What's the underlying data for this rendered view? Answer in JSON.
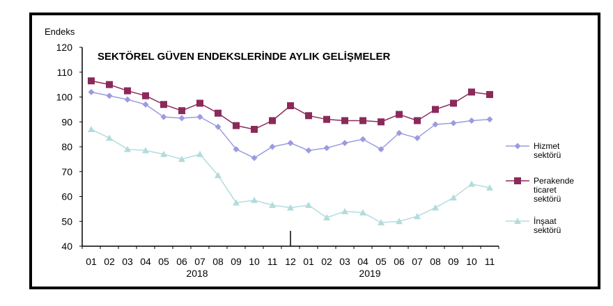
{
  "chart_data": {
    "type": "line",
    "title": "SEKTÖREL GÜVEN ENDEKSLERİNDE AYLIK GELİŞMELER",
    "ylabel": "Endeks",
    "xlabel": "",
    "ylim": [
      40,
      120
    ],
    "yticks": [
      40,
      50,
      60,
      70,
      80,
      90,
      100,
      110,
      120
    ],
    "categories": [
      "01",
      "02",
      "03",
      "04",
      "05",
      "06",
      "07",
      "08",
      "09",
      "10",
      "11",
      "12",
      "01",
      "02",
      "03",
      "04",
      "05",
      "06",
      "07",
      "08",
      "09",
      "10",
      "11"
    ],
    "year_labels": [
      "2018",
      "2019"
    ],
    "grid": false,
    "legend_position": "right",
    "series": [
      {
        "name": "Hizmet sektörü",
        "legend_lines": [
          "Hizmet",
          "sektörü"
        ],
        "color": "#9b9be0",
        "marker": "diamond",
        "values": [
          102,
          100.5,
          99,
          97,
          92,
          91.5,
          92,
          88,
          79,
          75.5,
          80,
          81.5,
          78.5,
          79.5,
          81.5,
          83,
          79,
          85.5,
          83.5,
          89,
          89.5,
          90.5,
          91
        ]
      },
      {
        "name": "Perakende ticaret sektörü",
        "legend_lines": [
          "Perakende",
          "ticaret",
          "sektörü"
        ],
        "color": "#8b2a5a",
        "marker": "square",
        "values": [
          106.5,
          105,
          102.5,
          100.5,
          97,
          94.5,
          97.5,
          93.5,
          88.5,
          87,
          90.5,
          96.5,
          92.5,
          91,
          90.5,
          90.5,
          90,
          93,
          90.5,
          95,
          97.5,
          102,
          101
        ]
      },
      {
        "name": "İnşaat sektörü",
        "legend_lines": [
          "İnşaat",
          "sektörü"
        ],
        "color": "#b3dcdc",
        "marker": "triangle",
        "values": [
          87,
          83.5,
          79,
          78.5,
          77,
          75,
          77,
          68.5,
          57.5,
          58.5,
          56.5,
          55.5,
          56.5,
          51.5,
          54,
          53.5,
          49.5,
          50,
          52,
          55.5,
          59.5,
          65,
          63.5
        ]
      }
    ]
  }
}
